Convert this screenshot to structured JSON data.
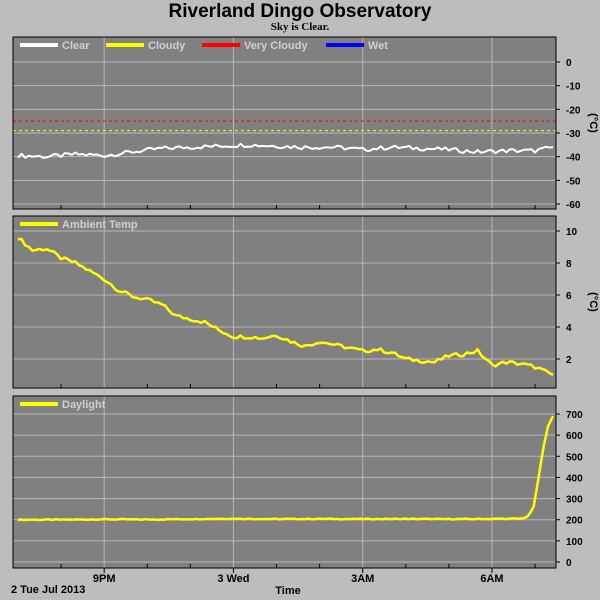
{
  "page": {
    "title": "Riverland Dingo Observatory",
    "subtitle": "Sky is Clear."
  },
  "colors": {
    "background": "#bdbdbd",
    "plot_background": "#808080",
    "grid": "#b8b8b8",
    "clear": "#ffffff",
    "cloudy": "#ffff00",
    "very_cloudy": "#ff0000",
    "wet": "#0000ff",
    "ambient": "#ffff00",
    "daylight": "#ffff00"
  },
  "chart_data": [
    {
      "type": "line",
      "x_range": [
        "2013-07-02 19:00",
        "2013-07-03 07:25"
      ],
      "ylim": [
        -60,
        5
      ],
      "y_ticks": [
        0,
        -10,
        -20,
        -30,
        -40,
        -50,
        -60
      ],
      "ylabel": "(°C)",
      "grid": true,
      "legend_position": "top-left",
      "legend": [
        {
          "label": "Clear",
          "color": "#ffffff"
        },
        {
          "label": "Cloudy",
          "color": "#ffff00"
        },
        {
          "label": "Very Cloudy",
          "color": "#ff0000"
        },
        {
          "label": "Wet",
          "color": "#0000ff"
        }
      ],
      "thresholds": [
        {
          "name": "Very Cloudy",
          "value": -25,
          "color": "#ff0000"
        },
        {
          "name": "Cloudy",
          "value": -29,
          "color": "#ffff00"
        }
      ],
      "series": [
        {
          "name": "Clear",
          "color": "#ffffff",
          "x": [
            "2013-07-02 19:00",
            "2013-07-02 19:40",
            "2013-07-02 20:20",
            "2013-07-02 21:00",
            "2013-07-02 21:40",
            "2013-07-02 22:20",
            "2013-07-02 23:00",
            "2013-07-02 23:40",
            "2013-07-03 00:20",
            "2013-07-03 01:00",
            "2013-07-03 01:40",
            "2013-07-03 02:20",
            "2013-07-03 03:00",
            "2013-07-03 03:40",
            "2013-07-03 04:20",
            "2013-07-03 05:00",
            "2013-07-03 05:40",
            "2013-07-03 06:20",
            "2013-07-03 07:00",
            "2013-07-03 07:25"
          ],
          "values": [
            -39.5,
            -40,
            -39,
            -39.5,
            -38,
            -36.5,
            -36,
            -35.5,
            -35,
            -35.5,
            -36,
            -36,
            -37,
            -36,
            -36.5,
            -37,
            -38,
            -37.5,
            -37.5,
            -36
          ]
        }
      ]
    },
    {
      "type": "line",
      "x_range": [
        "2013-07-02 19:00",
        "2013-07-03 07:25"
      ],
      "ylim": [
        0,
        11
      ],
      "y_ticks": [
        10,
        8,
        6,
        4,
        2
      ],
      "ylabel": "(°C)",
      "grid": true,
      "legend_position": "top-left",
      "legend": [
        {
          "label": "Ambient Temp",
          "color": "#ffff00"
        }
      ],
      "series": [
        {
          "name": "Ambient Temp",
          "color": "#ffff00",
          "x": [
            "2013-07-02 19:00",
            "2013-07-02 19:20",
            "2013-07-02 19:40",
            "2013-07-02 20:00",
            "2013-07-02 20:20",
            "2013-07-02 20:40",
            "2013-07-02 21:00",
            "2013-07-02 21:20",
            "2013-07-02 21:40",
            "2013-07-02 22:00",
            "2013-07-02 22:20",
            "2013-07-02 22:40",
            "2013-07-02 23:00",
            "2013-07-02 23:20",
            "2013-07-02 23:40",
            "2013-07-03 00:00",
            "2013-07-03 00:20",
            "2013-07-03 00:40",
            "2013-07-03 01:00",
            "2013-07-03 01:20",
            "2013-07-03 01:40",
            "2013-07-03 02:00",
            "2013-07-03 02:20",
            "2013-07-03 02:40",
            "2013-07-03 03:00",
            "2013-07-03 03:20",
            "2013-07-03 03:40",
            "2013-07-03 04:00",
            "2013-07-03 04:20",
            "2013-07-03 04:40",
            "2013-07-03 05:00",
            "2013-07-03 05:20",
            "2013-07-03 05:40",
            "2013-07-03 06:00",
            "2013-07-03 06:20",
            "2013-07-03 06:40",
            "2013-07-03 07:00",
            "2013-07-03 07:25"
          ],
          "values": [
            9.6,
            8.8,
            8.9,
            8.3,
            8.0,
            7.5,
            7.0,
            6.3,
            5.9,
            5.7,
            5.4,
            4.7,
            4.5,
            4.3,
            3.8,
            3.4,
            3.4,
            3.3,
            3.5,
            3.1,
            2.8,
            3.1,
            2.9,
            2.7,
            2.5,
            2.6,
            2.4,
            2.0,
            1.9,
            1.8,
            2.2,
            2.3,
            2.5,
            1.6,
            1.8,
            1.7,
            1.5,
            1.0
          ]
        }
      ]
    },
    {
      "type": "line",
      "x_range": [
        "2013-07-02 19:00",
        "2013-07-03 07:25"
      ],
      "ylim": [
        0,
        750
      ],
      "y_ticks": [
        700,
        600,
        500,
        400,
        300,
        200,
        100,
        0
      ],
      "ylabel": "",
      "grid": true,
      "legend_position": "top-left",
      "legend": [
        {
          "label": "Daylight",
          "color": "#ffff00"
        }
      ],
      "series": [
        {
          "name": "Daylight",
          "color": "#ffff00",
          "x": [
            "2013-07-02 19:00",
            "2013-07-02 20:00",
            "2013-07-02 21:00",
            "2013-07-02 22:00",
            "2013-07-02 23:00",
            "2013-07-03 00:00",
            "2013-07-03 01:00",
            "2013-07-03 02:00",
            "2013-07-03 03:00",
            "2013-07-03 04:00",
            "2013-07-03 05:00",
            "2013-07-03 06:00",
            "2013-07-03 06:40",
            "2013-07-03 06:50",
            "2013-07-03 06:58",
            "2013-07-03 07:05",
            "2013-07-03 07:12",
            "2013-07-03 07:18",
            "2013-07-03 07:25"
          ],
          "values": [
            200,
            200,
            202,
            201,
            203,
            205,
            203,
            204,
            203,
            204,
            203,
            204,
            205,
            215,
            260,
            400,
            550,
            640,
            690
          ]
        }
      ]
    }
  ],
  "x_axis": {
    "label": "Time",
    "date_label": "2 Tue Jul 2013",
    "ticks": [
      {
        "label": "9PM",
        "x": "2013-07-02 21:00"
      },
      {
        "label": "3 Wed",
        "x": "2013-07-03 00:00"
      },
      {
        "label": "3AM",
        "x": "2013-07-03 03:00"
      },
      {
        "label": "6AM",
        "x": "2013-07-03 06:00"
      }
    ],
    "minor_ticks": [
      "2013-07-02 20:00",
      "2013-07-02 22:00",
      "2013-07-02 23:00",
      "2013-07-03 01:00",
      "2013-07-03 02:00",
      "2013-07-03 04:00",
      "2013-07-03 05:00",
      "2013-07-03 07:00"
    ]
  }
}
